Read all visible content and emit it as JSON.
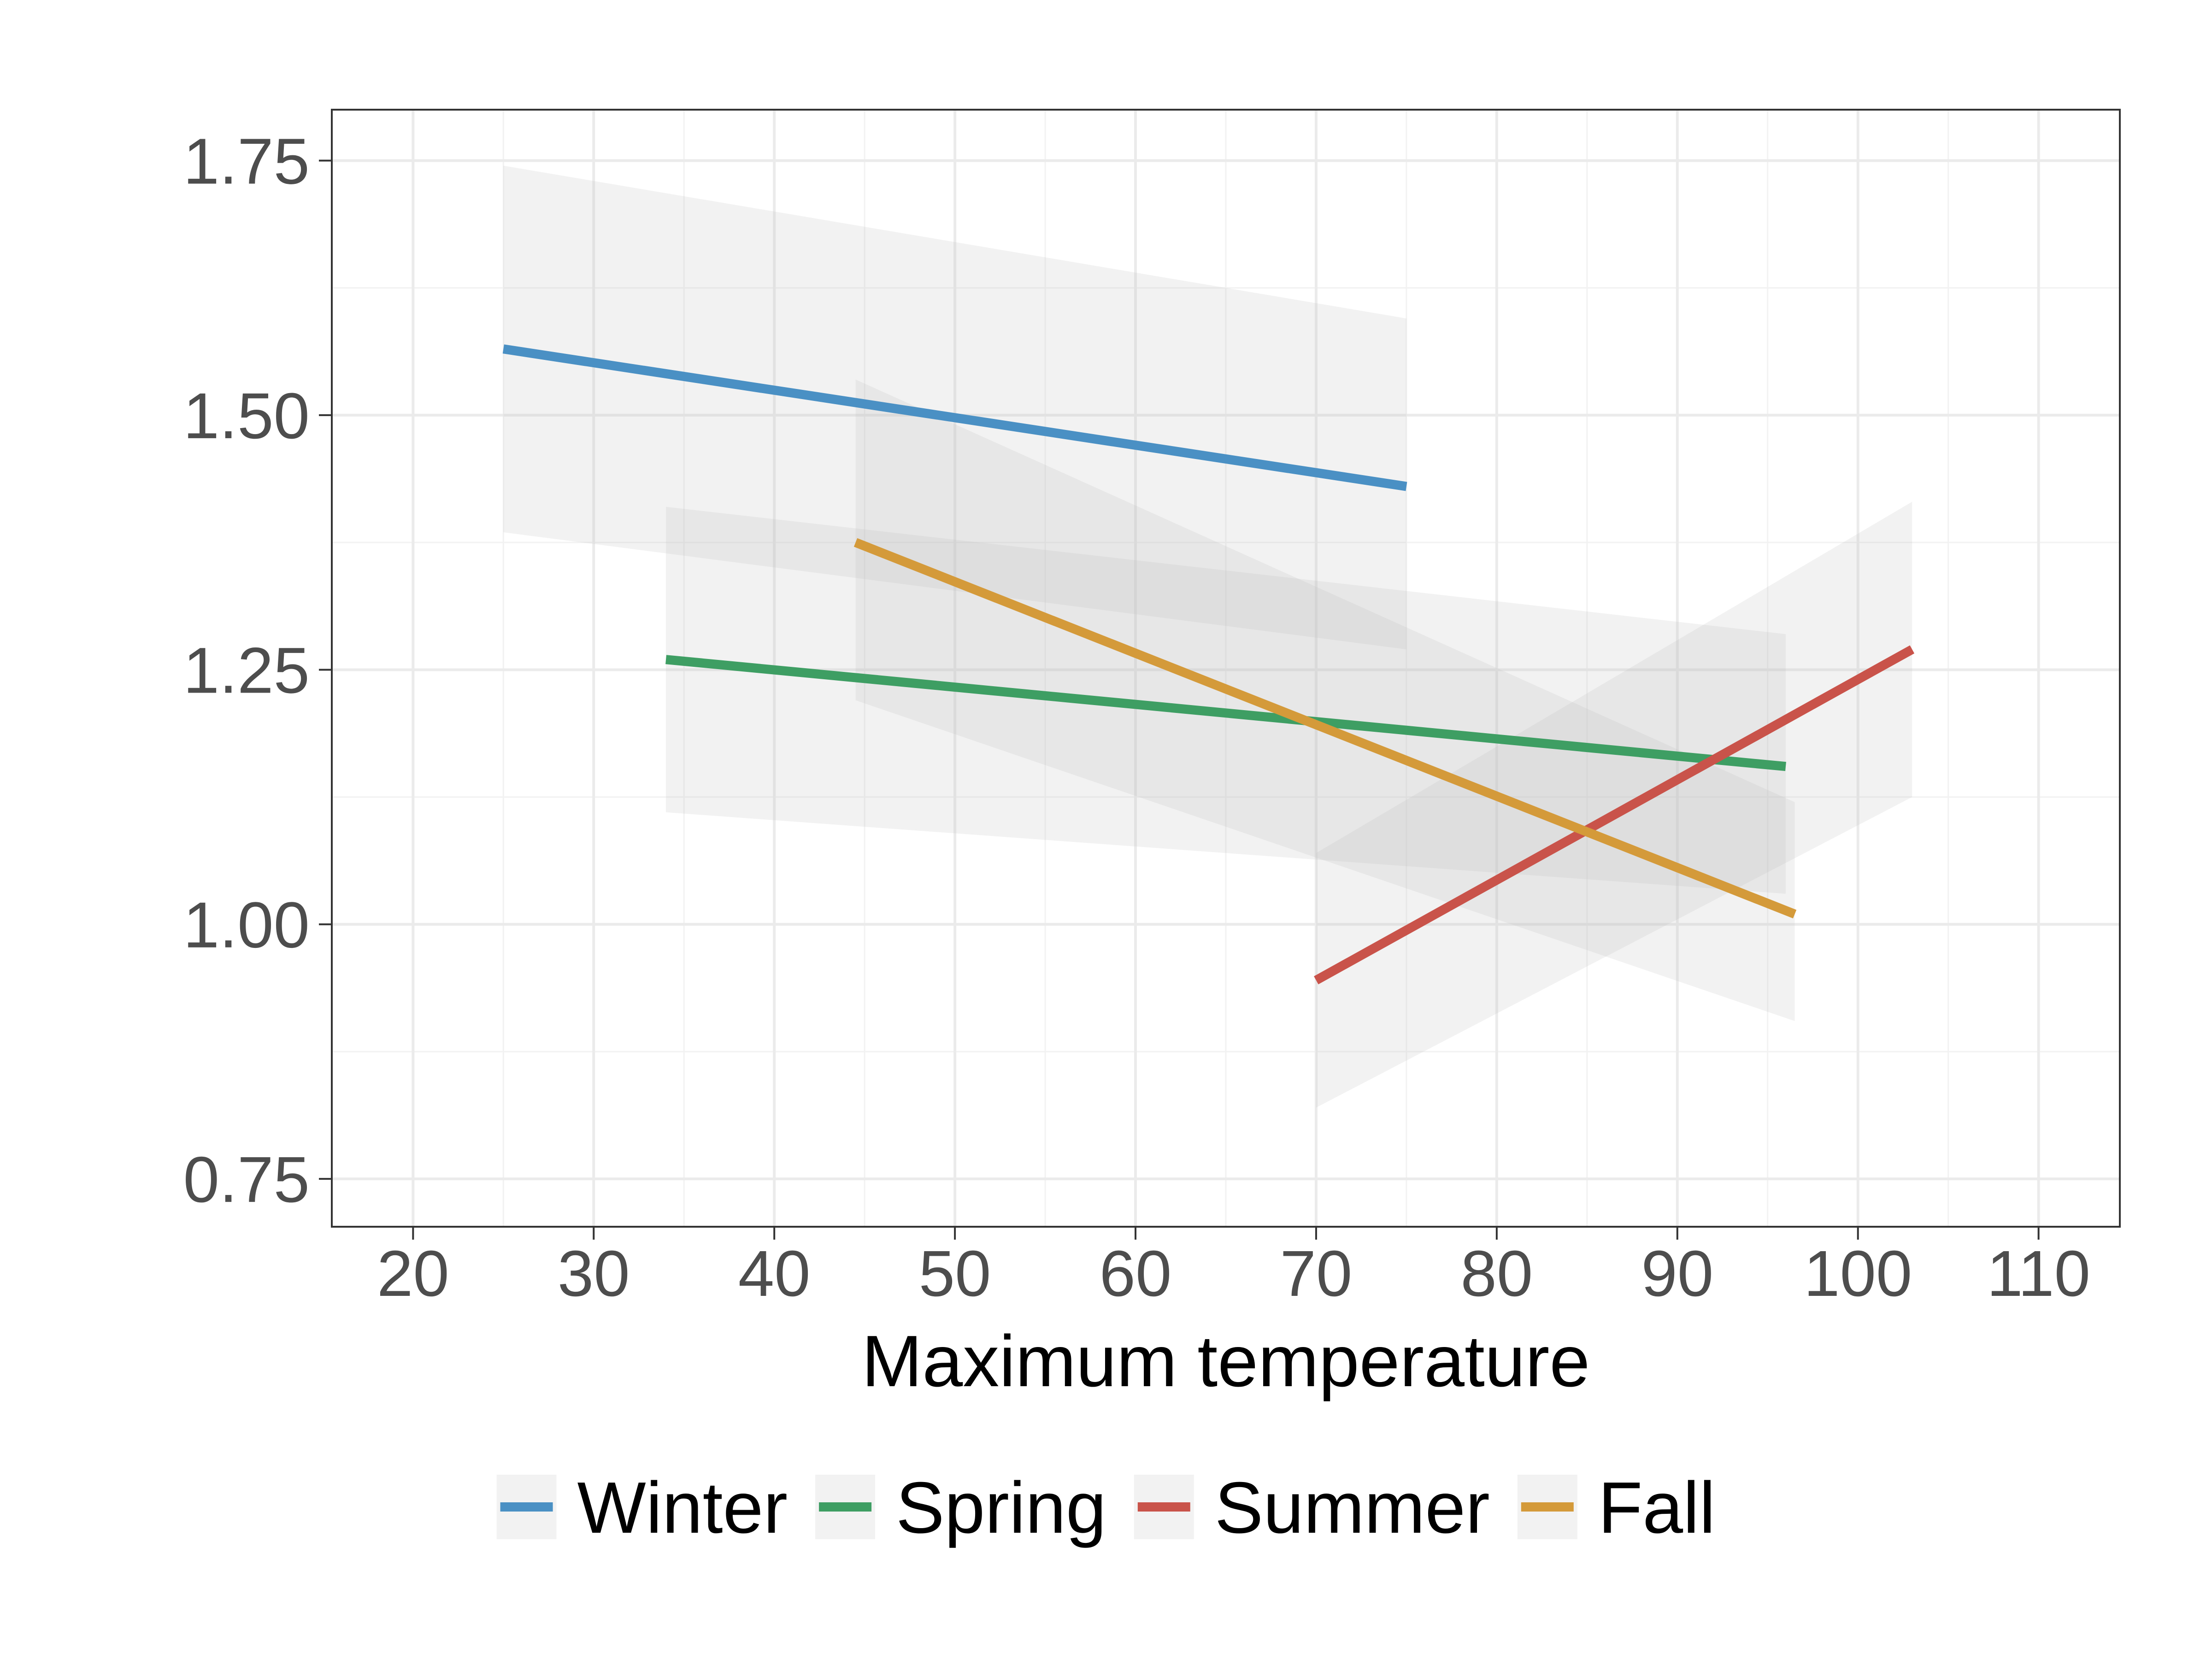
{
  "chart_data": {
    "type": "line",
    "title": "",
    "xlabel": "Maximum temperature",
    "ylabel": "",
    "xlim": [
      15.5,
      114.5
    ],
    "ylim": [
      0.703,
      1.8
    ],
    "x_ticks": [
      20,
      30,
      40,
      50,
      60,
      70,
      80,
      90,
      100,
      110
    ],
    "x_tick_labels": [
      "20",
      "30",
      "40",
      "50",
      "60",
      "70",
      "80",
      "90",
      "100",
      "110"
    ],
    "y_ticks": [
      0.75,
      1.0,
      1.25,
      1.5,
      1.75
    ],
    "y_tick_labels": [
      "0.75",
      "1.00",
      "1.25",
      "1.50",
      "1.75"
    ],
    "grid": true,
    "legend_position": "bottom",
    "series": [
      {
        "name": "Winter",
        "color": "#4a90c4",
        "x": [
          25,
          75
        ],
        "y": [
          1.565,
          1.43
        ],
        "ci_lower": [
          1.385,
          1.27
        ],
        "ci_upper": [
          1.745,
          1.595
        ]
      },
      {
        "name": "Spring",
        "color": "#3e9e63",
        "x": [
          34,
          96
        ],
        "y": [
          1.26,
          1.155
        ],
        "ci_lower": [
          1.11,
          1.03
        ],
        "ci_upper": [
          1.41,
          1.285
        ]
      },
      {
        "name": "Summer",
        "color": "#c9534a",
        "x": [
          70,
          103
        ],
        "y": [
          0.945,
          1.27
        ],
        "ci_lower": [
          0.82,
          1.125
        ],
        "ci_upper": [
          1.07,
          1.415
        ]
      },
      {
        "name": "Fall",
        "color": "#d49a3a",
        "x": [
          44.5,
          96.5
        ],
        "y": [
          1.375,
          1.01
        ],
        "ci_lower": [
          1.22,
          0.905
        ],
        "ci_upper": [
          1.535,
          1.12
        ]
      }
    ]
  },
  "legend": {
    "items": [
      {
        "label": "Winter",
        "color": "#4a90c4"
      },
      {
        "label": "Spring",
        "color": "#3e9e63"
      },
      {
        "label": "Summer",
        "color": "#c9534a"
      },
      {
        "label": "Fall",
        "color": "#d49a3a"
      }
    ]
  }
}
